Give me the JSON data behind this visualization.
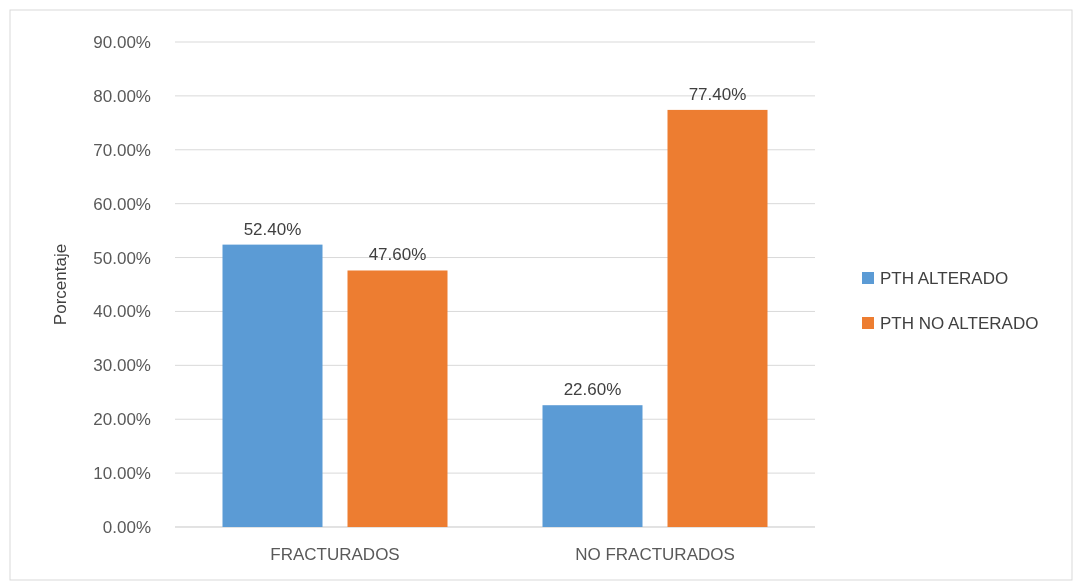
{
  "chart_data": {
    "type": "bar",
    "ylabel": "Porcentaje",
    "categories": [
      "FRACTURADOS",
      "NO FRACTURADOS"
    ],
    "series": [
      {
        "name": "PTH ALTERADO",
        "color": "#5b9bd5",
        "values": [
          52.4,
          22.6
        ],
        "value_labels": [
          "52.40%",
          "22.60%"
        ]
      },
      {
        "name": "PTH NO ALTERADO",
        "color": "#ed7d31",
        "values": [
          47.6,
          77.4
        ],
        "value_labels": [
          "47.60%",
          "77.40%"
        ]
      }
    ],
    "ylim": [
      0,
      90
    ],
    "yticks": [
      {
        "value": 0,
        "label": "0.00%"
      },
      {
        "value": 10,
        "label": "10.00%"
      },
      {
        "value": 20,
        "label": "20.00%"
      },
      {
        "value": 30,
        "label": "30.00%"
      },
      {
        "value": 40,
        "label": "40.00%"
      },
      {
        "value": 50,
        "label": "50.00%"
      },
      {
        "value": 60,
        "label": "60.00%"
      },
      {
        "value": 70,
        "label": "70.00%"
      },
      {
        "value": 80,
        "label": "80.00%"
      },
      {
        "value": 90,
        "label": "90.00%"
      }
    ],
    "grid": "y",
    "legend": "right"
  }
}
